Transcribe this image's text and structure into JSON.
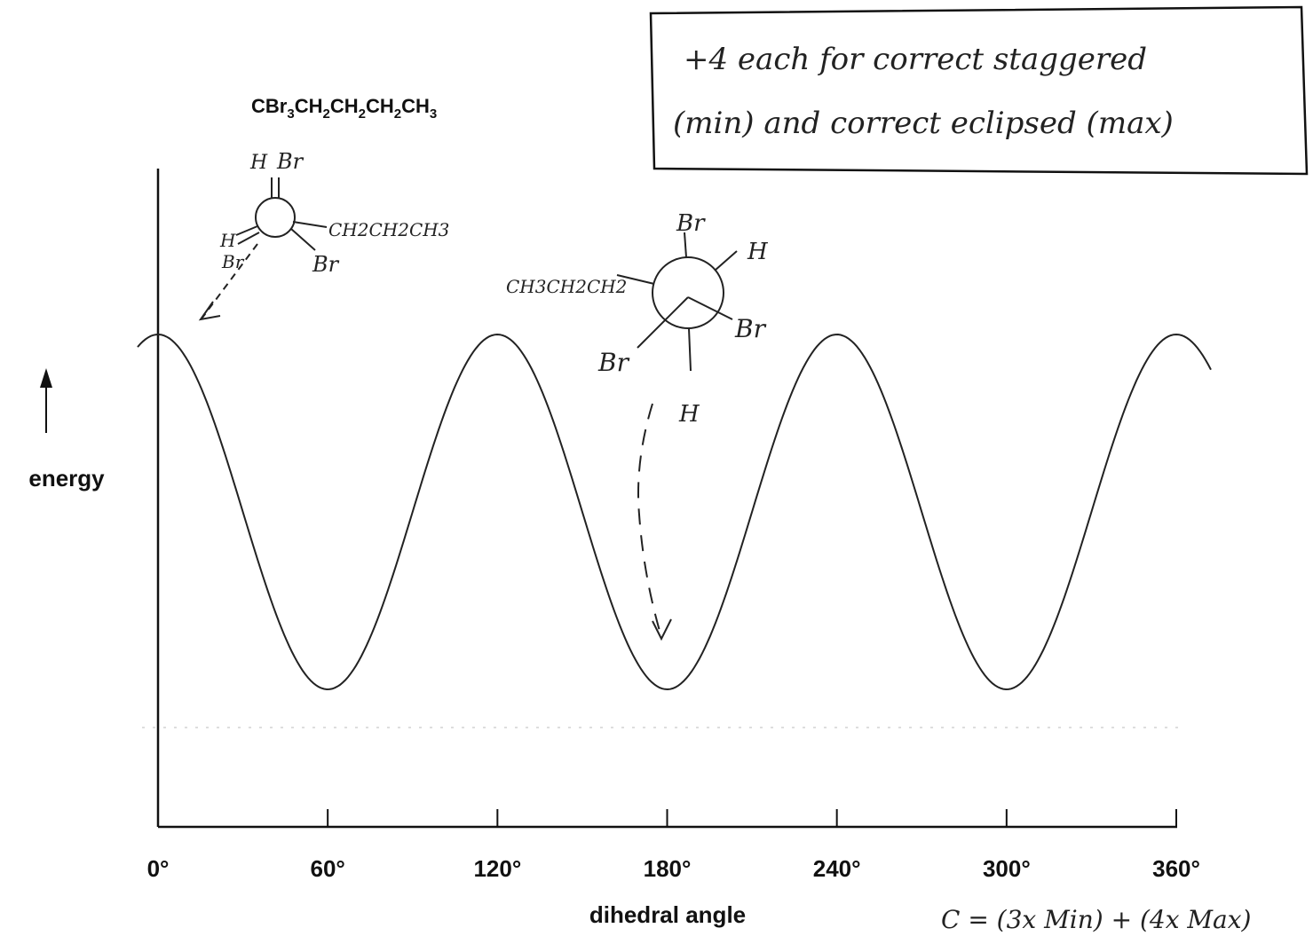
{
  "annotation_box": {
    "lines": [
      "+4 each for correct staggered",
      "(min) and correct eclipsed (max)"
    ]
  },
  "formula": [
    "CBr",
    "3",
    "CH",
    "2",
    "CH",
    "2",
    "CH",
    "2",
    "CH",
    "3"
  ],
  "newman_eclipsed": {
    "labels": [
      "H",
      "Br",
      "H",
      "Br",
      "CH2CH2CH3",
      "Br"
    ]
  },
  "newman_staggered": {
    "labels": [
      "Br",
      "H",
      "CH3CH2CH2",
      "Br",
      "Br",
      "H"
    ]
  },
  "y_axis_label": "energy",
  "x_axis_label": "dihedral angle",
  "x_ticks": [
    "0°",
    "60°",
    "120°",
    "180°",
    "240°",
    "300°",
    "360°"
  ],
  "footer_note": "C = (3x Min) + (4x Max)"
}
